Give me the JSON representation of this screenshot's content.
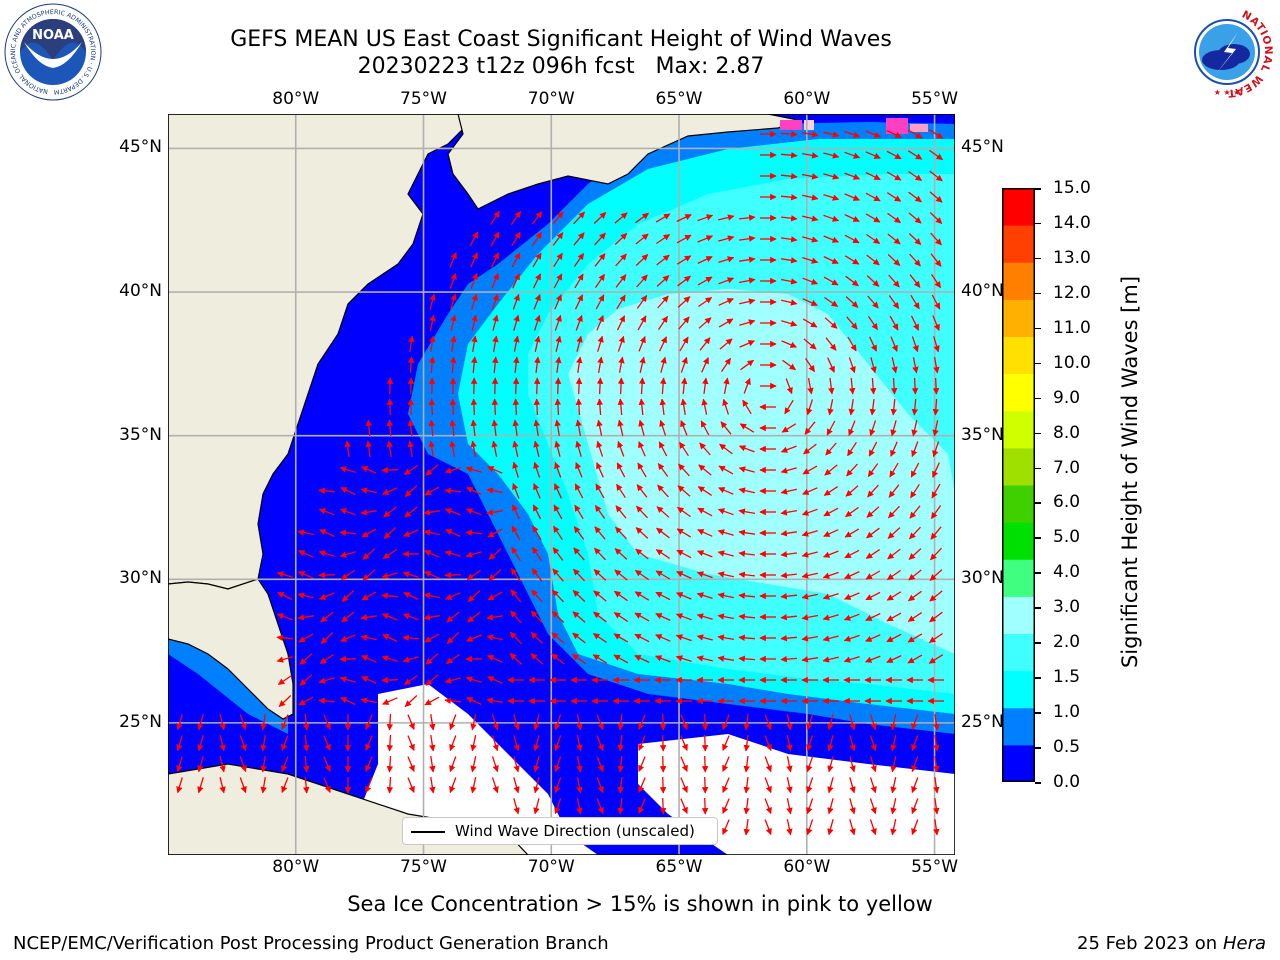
{
  "header": {
    "title_line1": "GEFS MEAN US East Coast Significant Height of Wind Waves",
    "title_line2": "20230223 t12z 096h fcst   Max: 2.87"
  },
  "logos": {
    "noaa_text": "NOAA",
    "noaa_ring_text": "NATIONAL OCEANIC AND ATMOSPHERIC ADMINISTRATION · U.S. DEPARTMENT OF COMMERCE",
    "nws_ring_text": "NATIONAL WEATHER SERVICE"
  },
  "map": {
    "lon_labels": [
      "80°W",
      "75°W",
      "70°W",
      "65°W",
      "60°W",
      "55°W"
    ],
    "lat_labels": [
      "45°N",
      "40°N",
      "35°N",
      "30°N",
      "25°N"
    ],
    "extent": {
      "lon_min": -85,
      "lon_max": -54.2,
      "lat_min": 20.4,
      "lat_max": 46.2
    },
    "colors": {
      "land": "#efedde",
      "gridlines": "#b0b0b0",
      "arrows": "#ff0000",
      "no_data": "#ffffff"
    }
  },
  "legend": {
    "line_label": "Wind Wave Direction (unscaled)"
  },
  "colorbar": {
    "label": "Significant Height of Wind Waves [m]",
    "ticks": [
      "15.0",
      "14.0",
      "13.0",
      "12.0",
      "11.0",
      "10.0",
      "9.0",
      "8.0",
      "7.0",
      "6.0",
      "5.0",
      "4.0",
      "3.0",
      "2.0",
      "1.5",
      "1.0",
      "0.5",
      "0.0"
    ],
    "colors_bottom_to_top": [
      "#0000ff",
      "#0080ff",
      "#00ffff",
      "#40ffff",
      "#a0ffff",
      "#40ff80",
      "#00e000",
      "#40d000",
      "#a0e000",
      "#d0ff00",
      "#ffff00",
      "#ffe000",
      "#ffb000",
      "#ff8000",
      "#ff4000",
      "#ff0000"
    ]
  },
  "captions": {
    "sea_ice": "Sea Ice Concentration > 15% is shown in pink to yellow",
    "footer_left": "NCEP/EMC/Verification Post Processing Product Generation Branch",
    "footer_date": "25 Feb 2023 on",
    "footer_machine": "Hera"
  }
}
